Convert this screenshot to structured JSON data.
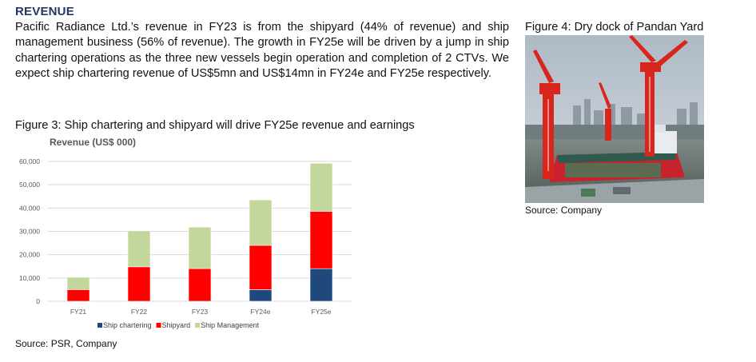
{
  "report": {
    "heading": "REVENUE",
    "paragraph": "Pacific Radiance Ltd.’s revenue in FY23 is from the shipyard (44% of revenue) and ship management business (56% of revenue). The growth in FY25e will be driven by a jump in ship chartering operations as the three new vessels begin operation and completion of 2 CTVs. We expect ship chartering revenue of US$5mn and US$14mn in FY24e and FY25e respectively."
  },
  "figure3": {
    "caption": "Figure 3: Ship chartering and shipyard will drive FY25e revenue and earnings",
    "source": "Source: PSR, Company"
  },
  "figure4": {
    "caption": "Figure 4: Dry dock of Pandan Yard",
    "source": "Source: Company"
  },
  "colors": {
    "ship_chartering": "#1f497d",
    "shipyard": "#ff0000",
    "ship_management": "#c3d69b",
    "grid": "#d9d9d9",
    "heading": "#1f3864"
  },
  "chart_data": {
    "type": "bar",
    "stacked": true,
    "title": "Revenue (US$ 000)",
    "categories": [
      "FY21",
      "FY22",
      "FY23",
      "FY24e",
      "FY25e"
    ],
    "series": [
      {
        "name": "Ship chartering",
        "color": "#1f497d",
        "values": [
          0,
          0,
          0,
          5000,
          14000
        ]
      },
      {
        "name": "Shipyard",
        "color": "#ff0000",
        "values": [
          5000,
          14800,
          14000,
          19000,
          24600
        ]
      },
      {
        "name": "Ship Management",
        "color": "#c3d69b",
        "values": [
          5300,
          15400,
          17800,
          19500,
          20600
        ]
      }
    ],
    "ylim": [
      0,
      60000
    ],
    "yticks": [
      0,
      10000,
      20000,
      30000,
      40000,
      50000,
      60000
    ],
    "ytick_labels": [
      "0",
      "10,000",
      "20,000",
      "30,000",
      "40,000",
      "50,000",
      "60,000"
    ],
    "grid": true,
    "legend_position": "bottom"
  }
}
